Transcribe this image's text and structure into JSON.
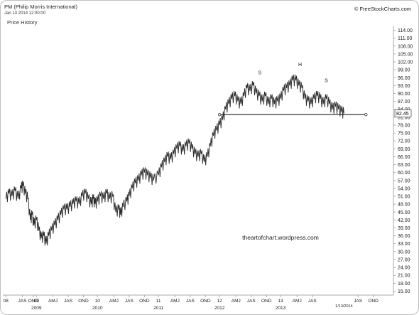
{
  "header": {
    "title": "PM (Philip Morris International)",
    "datetime": "Jan 13 2014 12:00:00",
    "subtitle": "Price History",
    "brand": "© FreeStockCharts.com"
  },
  "chart_data": {
    "type": "line",
    "title": "PM (Philip Morris International)",
    "subtitle": "Price History",
    "xlim": [
      2008.45,
      2014.85
    ],
    "ylim": [
      13.5,
      115.5
    ],
    "y_ticks": [
      15,
      18,
      21,
      24,
      27,
      30,
      33,
      36,
      39,
      42,
      45,
      48,
      51,
      54,
      57,
      60,
      63,
      66,
      69,
      72,
      75,
      78,
      81,
      84,
      87,
      90,
      93,
      96,
      99,
      102,
      105,
      108,
      111,
      114
    ],
    "y_tick_labels": [
      "15.00",
      "18.00",
      "21.00",
      "24.00",
      "27.00",
      "30.00",
      "33.00",
      "36.00",
      "39.00",
      "42.00",
      "45.00",
      "48.00",
      "51.00",
      "54.00",
      "57.00",
      "60.00",
      "63.00",
      "66.00",
      "69.00",
      "72.00",
      "75.00",
      "78.00",
      "81.00",
      "84.00",
      "87.00",
      "90.00",
      "93.00",
      "96.00",
      "99.00",
      "102.00",
      "105.00",
      "108.00",
      "111.00",
      "114.00"
    ],
    "x_ticks": [
      {
        "x": 2008.5,
        "label": "08",
        "year": ""
      },
      {
        "x": 2008.77,
        "label": "JAS",
        "year": ""
      },
      {
        "x": 2008.95,
        "label": "OND",
        "year": ""
      },
      {
        "x": 2009.0,
        "label": "09",
        "year": "2009"
      },
      {
        "x": 2009.27,
        "label": "AMJ",
        "year": ""
      },
      {
        "x": 2009.52,
        "label": "JAS",
        "year": ""
      },
      {
        "x": 2009.77,
        "label": "OND",
        "year": ""
      },
      {
        "x": 2010.0,
        "label": "10",
        "year": "2010"
      },
      {
        "x": 2010.27,
        "label": "AMJ",
        "year": ""
      },
      {
        "x": 2010.52,
        "label": "JAS",
        "year": ""
      },
      {
        "x": 2010.77,
        "label": "OND",
        "year": ""
      },
      {
        "x": 2011.0,
        "label": "11",
        "year": "2011"
      },
      {
        "x": 2011.27,
        "label": "AMJ",
        "year": ""
      },
      {
        "x": 2011.52,
        "label": "JAS",
        "year": ""
      },
      {
        "x": 2011.77,
        "label": "OND",
        "year": ""
      },
      {
        "x": 2012.0,
        "label": "12",
        "year": "2012"
      },
      {
        "x": 2012.27,
        "label": "AMJ",
        "year": ""
      },
      {
        "x": 2012.52,
        "label": "JAS",
        "year": ""
      },
      {
        "x": 2012.77,
        "label": "OND",
        "year": ""
      },
      {
        "x": 2013.0,
        "label": "13",
        "year": "2013"
      },
      {
        "x": 2013.27,
        "label": "AMJ",
        "year": ""
      },
      {
        "x": 2013.52,
        "label": "JAS",
        "year": ""
      },
      {
        "x": 2014.27,
        "label": "JAS",
        "year": ""
      },
      {
        "x": 2014.52,
        "label": "OND",
        "year": ""
      }
    ],
    "last_date_label": "1/13/2014",
    "last_date_x": 2014.04,
    "last_value": 82.45,
    "last_value_label": "82.45",
    "series": [
      {
        "values": [
          [
            2008.5,
            50
          ],
          [
            2008.55,
            52
          ],
          [
            2008.6,
            51
          ],
          [
            2008.65,
            53
          ],
          [
            2008.7,
            50
          ],
          [
            2008.75,
            54
          ],
          [
            2008.78,
            55
          ],
          [
            2008.82,
            52
          ],
          [
            2008.86,
            50
          ],
          [
            2008.9,
            42
          ],
          [
            2008.93,
            44
          ],
          [
            2008.96,
            40
          ],
          [
            2009.0,
            42
          ],
          [
            2009.04,
            38
          ],
          [
            2009.08,
            35
          ],
          [
            2009.12,
            36
          ],
          [
            2009.16,
            33
          ],
          [
            2009.2,
            36
          ],
          [
            2009.25,
            38
          ],
          [
            2009.3,
            40
          ],
          [
            2009.35,
            42
          ],
          [
            2009.4,
            44
          ],
          [
            2009.45,
            46
          ],
          [
            2009.5,
            46
          ],
          [
            2009.55,
            47
          ],
          [
            2009.6,
            48
          ],
          [
            2009.65,
            49
          ],
          [
            2009.7,
            48
          ],
          [
            2009.75,
            51
          ],
          [
            2009.8,
            52
          ],
          [
            2009.85,
            50
          ],
          [
            2009.9,
            48
          ],
          [
            2009.93,
            50
          ],
          [
            2009.96,
            48
          ],
          [
            2010.0,
            49
          ],
          [
            2010.05,
            51
          ],
          [
            2010.1,
            50
          ],
          [
            2010.15,
            52
          ],
          [
            2010.2,
            50
          ],
          [
            2010.25,
            51
          ],
          [
            2010.3,
            45
          ],
          [
            2010.35,
            46
          ],
          [
            2010.38,
            44
          ],
          [
            2010.42,
            47
          ],
          [
            2010.48,
            49
          ],
          [
            2010.52,
            51
          ],
          [
            2010.57,
            54
          ],
          [
            2010.62,
            56
          ],
          [
            2010.67,
            57
          ],
          [
            2010.72,
            59
          ],
          [
            2010.77,
            60
          ],
          [
            2010.82,
            59
          ],
          [
            2010.87,
            58
          ],
          [
            2010.92,
            57
          ],
          [
            2011.0,
            59
          ],
          [
            2011.05,
            62
          ],
          [
            2011.1,
            64
          ],
          [
            2011.15,
            66
          ],
          [
            2011.2,
            65
          ],
          [
            2011.25,
            67
          ],
          [
            2011.3,
            69
          ],
          [
            2011.35,
            70
          ],
          [
            2011.4,
            68
          ],
          [
            2011.45,
            70
          ],
          [
            2011.5,
            71
          ],
          [
            2011.55,
            69
          ],
          [
            2011.6,
            67
          ],
          [
            2011.65,
            66
          ],
          [
            2011.7,
            67
          ],
          [
            2011.75,
            64
          ],
          [
            2011.8,
            66
          ],
          [
            2011.85,
            70
          ],
          [
            2011.9,
            74
          ],
          [
            2011.95,
            76
          ],
          [
            2012.0,
            78
          ],
          [
            2012.05,
            80
          ],
          [
            2012.1,
            84
          ],
          [
            2012.15,
            86
          ],
          [
            2012.2,
            88
          ],
          [
            2012.25,
            89
          ],
          [
            2012.3,
            87
          ],
          [
            2012.35,
            86
          ],
          [
            2012.4,
            89
          ],
          [
            2012.45,
            92
          ],
          [
            2012.5,
            91
          ],
          [
            2012.55,
            93
          ],
          [
            2012.6,
            90
          ],
          [
            2012.65,
            89
          ],
          [
            2012.7,
            87
          ],
          [
            2012.75,
            89
          ],
          [
            2012.8,
            86
          ],
          [
            2012.85,
            88
          ],
          [
            2012.9,
            86
          ],
          [
            2012.95,
            87
          ],
          [
            2013.0,
            88
          ],
          [
            2013.05,
            91
          ],
          [
            2013.1,
            92
          ],
          [
            2013.15,
            93
          ],
          [
            2013.2,
            95
          ],
          [
            2013.25,
            95
          ],
          [
            2013.3,
            93
          ],
          [
            2013.35,
            92
          ],
          [
            2013.4,
            88
          ],
          [
            2013.45,
            87
          ],
          [
            2013.5,
            86
          ],
          [
            2013.55,
            88
          ],
          [
            2013.6,
            89
          ],
          [
            2013.65,
            88
          ],
          [
            2013.7,
            86
          ],
          [
            2013.75,
            88
          ],
          [
            2013.8,
            86
          ],
          [
            2013.85,
            84
          ],
          [
            2013.9,
            85
          ],
          [
            2013.95,
            84
          ],
          [
            2014.0,
            83
          ],
          [
            2014.04,
            82.45
          ]
        ]
      }
    ],
    "neckline": {
      "x": [
        2012.0,
        2014.4
      ],
      "y": [
        82,
        82
      ]
    },
    "annotations": [
      {
        "text": "S",
        "x": 2012.66,
        "y": 97.3
      },
      {
        "text": "H",
        "x": 2013.32,
        "y": 100.4
      },
      {
        "text": "S",
        "x": 2013.75,
        "y": 94.3
      }
    ],
    "watermark": "theartofchart.wordpress.com",
    "watermark_position": {
      "x": 2013.0,
      "y": 34.6
    },
    "grid": false,
    "colors": {
      "price": "#2a2a2a",
      "neckline": "#333333",
      "axis": "#aaaaaa",
      "text": "#222222"
    }
  }
}
